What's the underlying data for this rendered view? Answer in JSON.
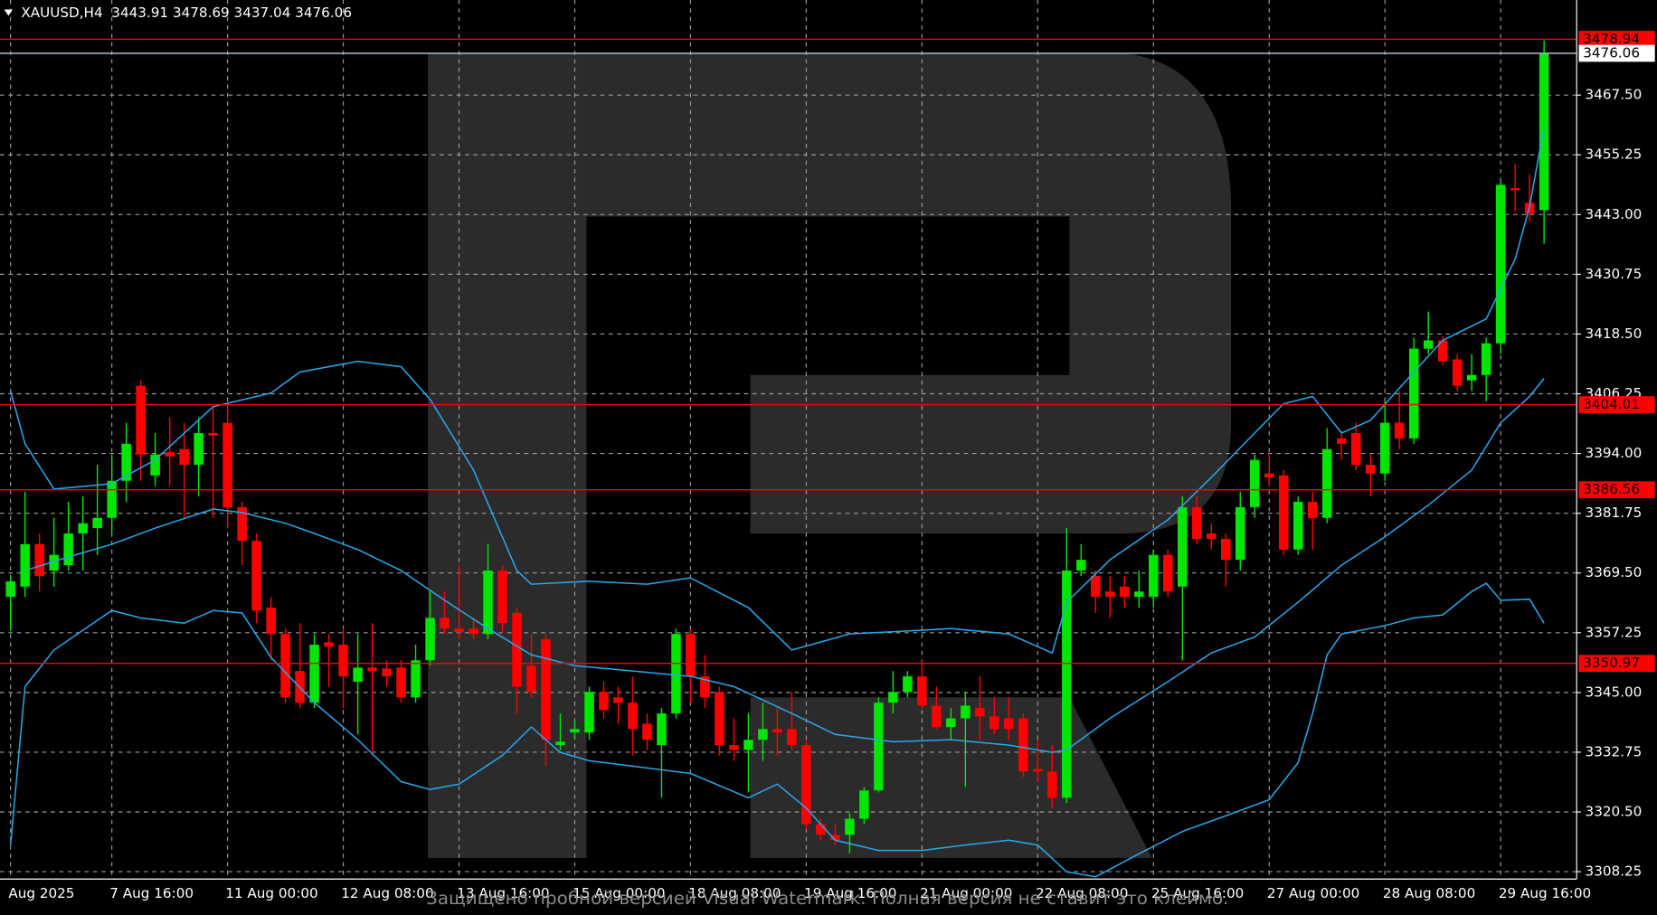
{
  "header": {
    "symbol": "XAUUSD,H4"
  },
  "watermark": {
    "text": "Защищено пробной версией Visual Watermark. Полная версия не ставит это клеймо."
  },
  "chart_data": {
    "type": "candlestick",
    "up_color": "#00e600",
    "down_color": "#ff0000",
    "grid": true,
    "ylim": [
      3306.73,
      3487.0
    ],
    "yticks": [
      {
        "value": 3308.25,
        "label": "3308.25"
      },
      {
        "value": 3320.5,
        "label": "3320.50"
      },
      {
        "value": 3332.75,
        "label": "3332.75"
      },
      {
        "value": 3345,
        "label": "3345.00"
      },
      {
        "value": 3357.25,
        "label": "3357.25"
      },
      {
        "value": 3369.5,
        "label": "3369.50"
      },
      {
        "value": 3381.75,
        "label": "3381.75"
      },
      {
        "value": 3394,
        "label": "3394.00"
      },
      {
        "value": 3406.25,
        "label": "3406.25"
      },
      {
        "value": 3418.5,
        "label": "3418.50"
      },
      {
        "value": 3430.75,
        "label": "3430.75"
      },
      {
        "value": 3443,
        "label": "3443.00"
      },
      {
        "value": 3455.25,
        "label": "3455.25"
      },
      {
        "value": 3467.5,
        "label": "3467.50"
      }
    ],
    "categories": [
      "Aug 2025",
      null,
      null,
      null,
      null,
      null,
      null,
      "7 Aug 16:00",
      null,
      null,
      null,
      null,
      null,
      null,
      null,
      "11 Aug 00:00",
      null,
      null,
      null,
      null,
      null,
      null,
      null,
      "12 Aug 08:00",
      null,
      null,
      null,
      null,
      null,
      null,
      null,
      "13 Aug 16:00",
      null,
      null,
      null,
      null,
      null,
      null,
      null,
      "15 Aug 00:00",
      null,
      null,
      null,
      null,
      null,
      null,
      null,
      "18 Aug 08:00",
      null,
      null,
      null,
      null,
      null,
      null,
      null,
      "19 Aug 16:00",
      null,
      null,
      null,
      null,
      null,
      null,
      null,
      "21 Aug 00:00",
      null,
      null,
      null,
      null,
      null,
      null,
      null,
      "22 Aug 08:00",
      null,
      null,
      null,
      null,
      null,
      null,
      null,
      "25 Aug 16:00",
      null,
      null,
      null,
      null,
      null,
      null,
      null,
      "27 Aug 00:00",
      null,
      null,
      null,
      null,
      null,
      null,
      null,
      "28 Aug 08:00",
      null,
      null,
      null,
      null,
      null,
      null,
      null,
      "29 Aug 16:00",
      null,
      null,
      null
    ],
    "candles": [
      [
        3364.6,
        3368.9,
        3357.6,
        3367.8
      ],
      [
        3366.7,
        3386.2,
        3364.6,
        3375.4
      ],
      [
        3375.4,
        3377.6,
        3365.7,
        3368.9
      ],
      [
        3370,
        3380.8,
        3366.7,
        3373.2
      ],
      [
        3371.1,
        3384.1,
        3370,
        3377.6
      ],
      [
        3377.6,
        3385.2,
        3370,
        3379.7
      ],
      [
        3378.7,
        3391.7,
        3373.2,
        3380.8
      ],
      [
        3380.8,
        3393.8,
        3377.6,
        3388.4
      ],
      [
        3388.4,
        3400.3,
        3384.1,
        3396
      ],
      [
        3407.9,
        3409,
        3388.4,
        3393.8
      ],
      [
        3389.5,
        3398.2,
        3387.3,
        3393.8
      ],
      [
        3394.3,
        3401.4,
        3387.3,
        3393.4
      ],
      [
        3394.9,
        3400.3,
        3380.8,
        3391.7
      ],
      [
        3391.7,
        3401.4,
        3385.2,
        3398.2
      ],
      [
        3398.2,
        3403.6,
        3380.8,
        3397.7
      ],
      [
        3400.3,
        3404.7,
        3378.7,
        3383
      ],
      [
        3383,
        3384.1,
        3371.1,
        3376.1
      ],
      [
        3376.1,
        3377.6,
        3359.2,
        3361.8
      ],
      [
        3362.4,
        3364.6,
        3351.6,
        3357
      ],
      [
        3357,
        3358.1,
        3342.9,
        3344
      ],
      [
        3349.4,
        3359.2,
        3341.8,
        3342.9
      ],
      [
        3342.9,
        3357,
        3341.8,
        3354.8
      ],
      [
        3355.3,
        3357,
        3346.2,
        3354.4
      ],
      [
        3354.8,
        3358.1,
        3341.8,
        3348.3
      ],
      [
        3347.2,
        3357,
        3336.4,
        3350.1
      ],
      [
        3350.1,
        3359.2,
        3332.1,
        3349.4
      ],
      [
        3349.9,
        3351.6,
        3346.2,
        3348.3
      ],
      [
        3350.1,
        3351.6,
        3342.9,
        3344
      ],
      [
        3344,
        3354.8,
        3342.9,
        3351.6
      ],
      [
        3351.6,
        3365.7,
        3350.5,
        3360.3
      ],
      [
        3360.3,
        3365.7,
        3357,
        3358.1
      ],
      [
        3358.1,
        3371.1,
        3355.9,
        3357.4
      ],
      [
        3358.1,
        3360.3,
        3355.9,
        3357
      ],
      [
        3357,
        3375.4,
        3355.9,
        3370
      ],
      [
        3370,
        3371.1,
        3357,
        3359.2
      ],
      [
        3361.3,
        3362.4,
        3340.7,
        3346.2
      ],
      [
        3350.5,
        3357,
        3344,
        3345.1
      ],
      [
        3355.9,
        3357,
        3329.9,
        3335.3
      ],
      [
        3334.2,
        3340.7,
        3333.2,
        3334.9
      ],
      [
        3336.8,
        3339.7,
        3335.3,
        3337.5
      ],
      [
        3336.8,
        3346.2,
        3335.3,
        3345.1
      ],
      [
        3345.1,
        3347.2,
        3339.7,
        3341.4
      ],
      [
        3344,
        3346.2,
        3338.6,
        3342.9
      ],
      [
        3342.9,
        3348.3,
        3332.1,
        3337.5
      ],
      [
        3338.6,
        3340.7,
        3333.2,
        3335.3
      ],
      [
        3334.2,
        3341.8,
        3323.4,
        3340.7
      ],
      [
        3340.7,
        3358.1,
        3339.7,
        3357
      ],
      [
        3357,
        3358.1,
        3342.9,
        3348.3
      ],
      [
        3348.3,
        3352.7,
        3341.8,
        3344
      ],
      [
        3345.1,
        3346.2,
        3332.1,
        3334.2
      ],
      [
        3334.2,
        3339.7,
        3331,
        3333.2
      ],
      [
        3333.2,
        3340.7,
        3324.5,
        3335.3
      ],
      [
        3335.3,
        3342.9,
        3331,
        3337.5
      ],
      [
        3337.5,
        3341.8,
        3332.1,
        3336.8
      ],
      [
        3337.5,
        3345.1,
        3333.2,
        3334.2
      ],
      [
        3334.2,
        3335.3,
        3316.9,
        3318
      ],
      [
        3318,
        3319.1,
        3314.7,
        3315.8
      ],
      [
        3315.8,
        3318,
        3313.7,
        3314.7
      ],
      [
        3315.8,
        3320.2,
        3312,
        3319.1
      ],
      [
        3319.1,
        3325.6,
        3318,
        3324.9
      ],
      [
        3324.9,
        3344,
        3324.5,
        3342.9
      ],
      [
        3342.9,
        3349.4,
        3340.7,
        3345.1
      ],
      [
        3345.1,
        3349.4,
        3344,
        3348.3
      ],
      [
        3348.3,
        3351.6,
        3341.8,
        3342.3
      ],
      [
        3342.3,
        3346.2,
        3337.5,
        3337.9
      ],
      [
        3337.9,
        3341.8,
        3335.3,
        3339.7
      ],
      [
        3339.7,
        3345.1,
        3325.6,
        3342.3
      ],
      [
        3341.8,
        3348.3,
        3335.3,
        3340.1
      ],
      [
        3340.1,
        3344,
        3336.4,
        3337.5
      ],
      [
        3339.7,
        3344,
        3335.3,
        3337.5
      ],
      [
        3339.7,
        3340.7,
        3327.7,
        3328.8
      ],
      [
        3329.3,
        3335.3,
        3326.7,
        3328.8
      ],
      [
        3328.8,
        3334.2,
        3321.3,
        3323.4
      ],
      [
        3323.4,
        3378.7,
        3322.3,
        3370
      ],
      [
        3370,
        3375.4,
        3368.9,
        3372.2
      ],
      [
        3368.9,
        3370,
        3361.3,
        3364.6
      ],
      [
        3365.7,
        3368.9,
        3360.3,
        3364.6
      ],
      [
        3366.7,
        3368.9,
        3362.4,
        3364.6
      ],
      [
        3364.6,
        3370,
        3362.4,
        3365.7
      ],
      [
        3364.6,
        3374.3,
        3362.4,
        3373.2
      ],
      [
        3373.2,
        3374.3,
        3364.6,
        3365.7
      ],
      [
        3366.7,
        3385.2,
        3351.6,
        3383
      ],
      [
        3383,
        3385.2,
        3375.4,
        3376.5
      ],
      [
        3377.6,
        3379.7,
        3374.3,
        3376.5
      ],
      [
        3376.5,
        3377.6,
        3366.7,
        3372.2
      ],
      [
        3372.2,
        3386.2,
        3370,
        3383
      ],
      [
        3383,
        3393.8,
        3380.8,
        3392.7
      ],
      [
        3389.9,
        3393.8,
        3387.3,
        3389.1
      ],
      [
        3389.5,
        3390.6,
        3373.2,
        3374.3
      ],
      [
        3374.3,
        3385.2,
        3373.2,
        3384.1
      ],
      [
        3384.1,
        3386.2,
        3374.3,
        3380.8
      ],
      [
        3380.8,
        3399.2,
        3379.7,
        3394.9
      ],
      [
        3397.1,
        3398.6,
        3392.7,
        3396
      ],
      [
        3398.2,
        3400.3,
        3390.6,
        3391.7
      ],
      [
        3391.7,
        3393.8,
        3385.2,
        3389.9
      ],
      [
        3389.9,
        3404.7,
        3388.4,
        3400.3
      ],
      [
        3400.3,
        3406.8,
        3394.9,
        3397.1
      ],
      [
        3397.1,
        3417.7,
        3396,
        3415.5
      ],
      [
        3415.5,
        3423.1,
        3414.4,
        3417.2
      ],
      [
        3417.2,
        3418.1,
        3412.2,
        3412.9
      ],
      [
        3413.3,
        3414.4,
        3406.8,
        3407.9
      ],
      [
        3409,
        3414.4,
        3406.8,
        3410.1
      ],
      [
        3410.1,
        3417.7,
        3404.7,
        3416.6
      ],
      [
        3416.6,
        3450.2,
        3414.4,
        3449.1
      ],
      [
        3448.4,
        3453.4,
        3443.7,
        3448
      ],
      [
        3445.4,
        3451.2,
        3441.5,
        3443.2
      ],
      [
        3443.91,
        3478.69,
        3437.04,
        3476.06
      ]
    ],
    "bands": [
      {
        "color": "#2aa7ea",
        "x": [
          0,
          1,
          3,
          7,
          10,
          14,
          18,
          20,
          24,
          27,
          29,
          32,
          35,
          36,
          40,
          44,
          47,
          51,
          54,
          58,
          62,
          65,
          69,
          72,
          73,
          76,
          80,
          83,
          86,
          88,
          90,
          92,
          94,
          97,
          99,
          102,
          104,
          105,
          106
        ],
        "values": [
          3406.8,
          3396.0,
          3386.7,
          3387.8,
          3392.7,
          3403.6,
          3406.4,
          3410.7,
          3412.9,
          3411.8,
          3405.1,
          3390.6,
          3370.0,
          3367.2,
          3367.8,
          3367.2,
          3368.5,
          3362.4,
          3353.7,
          3357.0,
          3357.6,
          3358.1,
          3357.0,
          3353.1,
          3363.5,
          3372.2,
          3380.4,
          3389.1,
          3398.2,
          3404.2,
          3405.7,
          3398.2,
          3400.8,
          3410.7,
          3417.2,
          3421.6,
          3433.9,
          3444.7,
          3461.0
        ]
      },
      {
        "color": "#2aa7ea",
        "x": [
          1,
          4,
          7,
          10,
          14,
          16,
          19,
          21,
          24,
          27,
          30,
          33,
          36,
          39,
          43,
          47,
          50,
          54,
          57,
          61,
          65,
          69,
          72,
          73,
          76,
          80,
          83,
          86,
          89,
          92,
          95,
          98,
          101,
          103,
          105,
          106
        ],
        "values": [
          3370.0,
          3372.8,
          3375.4,
          3378.7,
          3382.6,
          3381.9,
          3379.7,
          3377.6,
          3374.3,
          3370.0,
          3363.9,
          3358.1,
          3352.7,
          3350.5,
          3349.4,
          3348.3,
          3346.2,
          3340.7,
          3336.4,
          3334.9,
          3335.3,
          3334.2,
          3332.7,
          3333.2,
          3339.7,
          3347.2,
          3353.1,
          3356.4,
          3363.5,
          3371.1,
          3376.9,
          3383.4,
          3390.6,
          3400.3,
          3405.7,
          3409.4
        ]
      },
      {
        "color": "#2aa7ea",
        "x": [
          0,
          1,
          3,
          7,
          9,
          12,
          14,
          16,
          18,
          21,
          24,
          27,
          29,
          31,
          34,
          36,
          38,
          40,
          43,
          47,
          51,
          53,
          55,
          57,
          60,
          63,
          66,
          69,
          71,
          73,
          75,
          78,
          81,
          84,
          87,
          89,
          90,
          91,
          92,
          95,
          97,
          99,
          101,
          102,
          103,
          105,
          106
        ],
        "values": [
          3313.7,
          3346.2,
          3353.7,
          3361.8,
          3360.3,
          3359.2,
          3361.8,
          3361.3,
          3352.2,
          3342.9,
          3335.3,
          3326.7,
          3325.1,
          3326.2,
          3332.1,
          3337.9,
          3332.7,
          3331.0,
          3329.9,
          3328.4,
          3323.4,
          3326.2,
          3321.3,
          3314.7,
          3312.6,
          3312.6,
          3313.7,
          3314.7,
          3313.7,
          3308.2,
          3307.2,
          3311.9,
          3316.5,
          3319.7,
          3323.0,
          3330.6,
          3340.7,
          3352.7,
          3357.0,
          3358.7,
          3360.3,
          3360.9,
          3365.7,
          3367.4,
          3363.9,
          3364.1,
          3359.2
        ]
      }
    ],
    "levels": [
      {
        "value": 3478.94,
        "color": "#ff0000"
      },
      {
        "value": 3404.01,
        "color": "#ff0000"
      },
      {
        "value": 3386.56,
        "color": "#ff0000"
      },
      {
        "value": 3350.97,
        "color": "#ff0000"
      }
    ],
    "bid_color": "#a9bcd0"
  }
}
